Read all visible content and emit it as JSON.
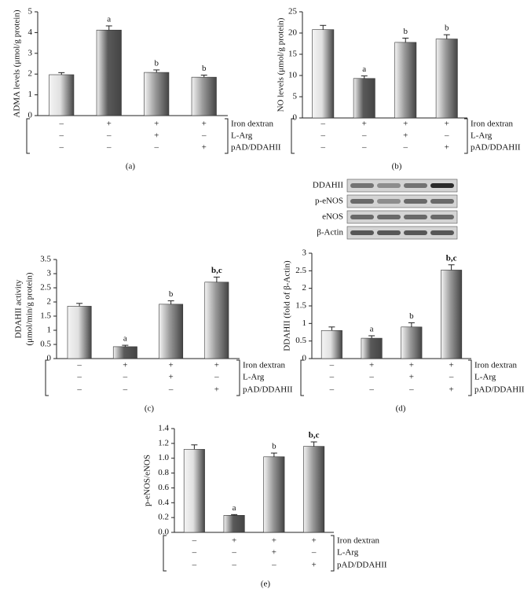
{
  "chart_data": [
    {
      "type": "bar",
      "y_label": "ADMA levels (μmol/g protein)",
      "caption": "(a)",
      "values": [
        1.97,
        4.12,
        2.08,
        1.85
      ],
      "errors": [
        0.1,
        0.2,
        0.12,
        0.1
      ],
      "annotations": [
        null,
        "a",
        "b",
        "b"
      ],
      "colors": [
        "#e0e0e0",
        "#5a5a5a",
        "#9a9a9a",
        "#9a9a9a"
      ],
      "ylim": [
        0,
        5
      ],
      "yticks": [
        0,
        1,
        2,
        3,
        4,
        5
      ],
      "conditions": [
        {
          "name": "Iron dextran",
          "signs": [
            "–",
            "+",
            "+",
            "+"
          ]
        },
        {
          "name": "L-Arg",
          "signs": [
            "–",
            "–",
            "+",
            "–"
          ]
        },
        {
          "name": "pAD/DDAHII",
          "signs": [
            "–",
            "–",
            "–",
            "+"
          ]
        }
      ]
    },
    {
      "type": "bar",
      "y_label": "NO levels (μmol/g protein)",
      "caption": "(b)",
      "values": [
        20.8,
        9.3,
        17.8,
        18.6
      ],
      "errors": [
        1.0,
        0.6,
        1.0,
        1.0
      ],
      "annotations": [
        null,
        "a",
        "b",
        "b"
      ],
      "colors": [
        "#e0e0e0",
        "#5a5a5a",
        "#9a9a9a",
        "#9a9a9a"
      ],
      "ylim": [
        0,
        25
      ],
      "yticks": [
        0,
        5,
        10,
        15,
        20,
        25
      ],
      "conditions": [
        {
          "name": "Iron dextran",
          "signs": [
            "–",
            "+",
            "+",
            "+"
          ]
        },
        {
          "name": "L-Arg",
          "signs": [
            "–",
            "–",
            "+",
            "–"
          ]
        },
        {
          "name": "pAD/DDAHII",
          "signs": [
            "–",
            "–",
            "–",
            "+"
          ]
        }
      ]
    },
    {
      "type": "bar",
      "y_label": [
        "DDAHII  activity",
        "(μmol/min/g protein)"
      ],
      "caption": "(c)",
      "values": [
        1.85,
        0.42,
        1.92,
        2.7
      ],
      "errors": [
        0.1,
        0.05,
        0.12,
        0.18
      ],
      "annotations": [
        null,
        "a",
        "b",
        "b,c"
      ],
      "colors": [
        "#e0e0e0",
        "#5a5a5a",
        "#9a9a9a",
        "#9a9a9a"
      ],
      "ylim": [
        0,
        3.5
      ],
      "yticks": [
        0,
        0.5,
        1,
        1.5,
        2,
        2.5,
        3,
        3.5
      ],
      "conditions": [
        {
          "name": "Iron dextran",
          "signs": [
            "–",
            "+",
            "+",
            "+"
          ]
        },
        {
          "name": "L-Arg",
          "signs": [
            "–",
            "–",
            "+",
            "–"
          ]
        },
        {
          "name": "pAD/DDAHII",
          "signs": [
            "–",
            "–",
            "–",
            "+"
          ]
        }
      ]
    },
    {
      "type": "bar",
      "y_label": "DDAHII (fold of β-Actin)",
      "caption": "(d)",
      "blot_labels": [
        "DDAHII",
        "p-eNOS",
        "eNOS",
        "β-Actin"
      ],
      "values": [
        0.8,
        0.58,
        0.9,
        2.52
      ],
      "errors": [
        0.1,
        0.07,
        0.12,
        0.15
      ],
      "annotations": [
        null,
        "a",
        "b",
        "b,c"
      ],
      "colors": [
        "#e0e0e0",
        "#5a5a5a",
        "#9a9a9a",
        "#9a9a9a"
      ],
      "ylim": [
        0,
        3
      ],
      "yticks": [
        0,
        0.5,
        1,
        1.5,
        2,
        2.5,
        3
      ],
      "conditions": [
        {
          "name": "Iron dextran",
          "signs": [
            "–",
            "+",
            "+",
            "+"
          ]
        },
        {
          "name": "L-Arg",
          "signs": [
            "–",
            "–",
            "+",
            "–"
          ]
        },
        {
          "name": "pAD/DDAHII",
          "signs": [
            "–",
            "–",
            "–",
            "+"
          ]
        }
      ]
    },
    {
      "type": "bar",
      "y_label": "p-eNOS/eNOS",
      "caption": "(e)",
      "values": [
        1.12,
        0.23,
        1.02,
        1.16
      ],
      "errors": [
        0.06,
        0.01,
        0.05,
        0.06
      ],
      "annotations": [
        null,
        "a",
        "b",
        "b,c"
      ],
      "colors": [
        "#e0e0e0",
        "#5a5a5a",
        "#9a9a9a",
        "#9a9a9a"
      ],
      "ylim": [
        0,
        1.4
      ],
      "yticks": [
        {
          "value": 0,
          "label": "0.0"
        },
        0.2,
        0.4,
        0.6,
        0.8,
        {
          "value": 1,
          "label": "1.0"
        },
        1.2,
        1.4
      ],
      "conditions": [
        {
          "name": "Iron dextran",
          "signs": [
            "–",
            "+",
            "+",
            "+"
          ]
        },
        {
          "name": "L-Arg",
          "signs": [
            "–",
            "–",
            "+",
            "–"
          ]
        },
        {
          "name": "pAD/DDAHII",
          "signs": [
            "–",
            "–",
            "–",
            "+"
          ]
        }
      ]
    }
  ]
}
